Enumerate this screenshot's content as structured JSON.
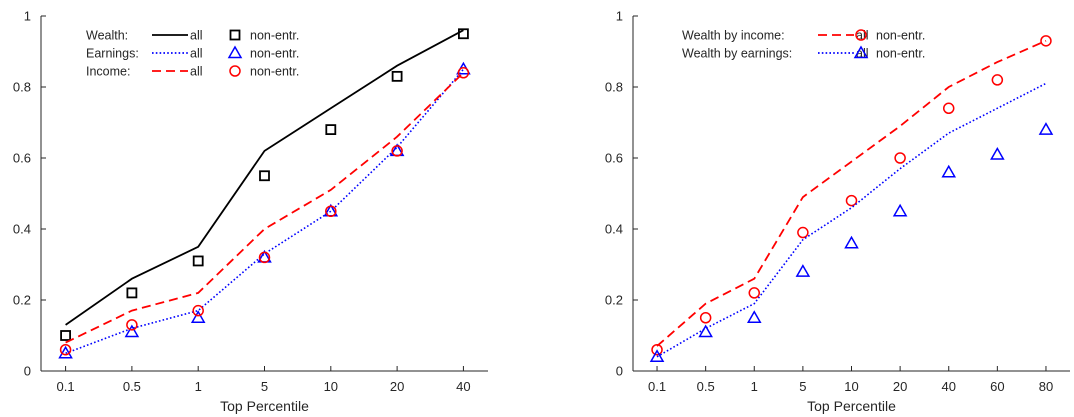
{
  "chart_data": [
    {
      "type": "line",
      "title": "",
      "xlabel": "Top Percentile",
      "ylabel": "",
      "ylim": [
        0,
        1
      ],
      "yticks": [
        "0",
        "0.2",
        "0.4",
        "0.6",
        "0.8",
        "1"
      ],
      "yticks_values": [
        0,
        0.2,
        0.4,
        0.6,
        0.8,
        1
      ],
      "categories": [
        "0.1",
        "0.5",
        "1",
        "5",
        "10",
        "20",
        "40"
      ],
      "grid": false,
      "legend": "top-left",
      "series": [
        {
          "group": "Wealth:",
          "name": "all",
          "kind": "line",
          "style": "solid",
          "color": "#000000",
          "values": [
            0.13,
            0.26,
            0.35,
            0.62,
            0.74,
            0.86,
            0.96
          ]
        },
        {
          "group": "Wealth:",
          "name": "non-entr.",
          "kind": "marker",
          "marker": "square",
          "color": "#000000",
          "values": [
            0.1,
            0.22,
            0.31,
            0.55,
            0.68,
            0.83,
            0.95
          ]
        },
        {
          "group": "Earnings:",
          "name": "all",
          "kind": "line",
          "style": "dotted",
          "color": "#0000ff",
          "values": [
            0.05,
            0.12,
            0.17,
            0.33,
            0.45,
            0.63,
            0.85
          ]
        },
        {
          "group": "Earnings:",
          "name": "non-entr.",
          "kind": "marker",
          "marker": "triangle",
          "color": "#0000ff",
          "values": [
            0.05,
            0.11,
            0.15,
            0.32,
            0.45,
            0.62,
            0.85
          ]
        },
        {
          "group": "Income:",
          "name": "all",
          "kind": "line",
          "style": "dashed",
          "color": "#ff0000",
          "values": [
            0.08,
            0.17,
            0.22,
            0.4,
            0.51,
            0.66,
            0.84
          ]
        },
        {
          "group": "Income:",
          "name": "non-entr.",
          "kind": "marker",
          "marker": "circle",
          "color": "#ff0000",
          "values": [
            0.06,
            0.13,
            0.17,
            0.32,
            0.45,
            0.62,
            0.84
          ]
        }
      ]
    },
    {
      "type": "line",
      "title": "",
      "xlabel": "Top Percentile",
      "ylabel": "",
      "ylim": [
        0,
        1
      ],
      "yticks": [
        "0",
        "0.2",
        "0.4",
        "0.6",
        "0.8",
        "1"
      ],
      "yticks_values": [
        0,
        0.2,
        0.4,
        0.6,
        0.8,
        1
      ],
      "categories": [
        "0.1",
        "0.5",
        "1",
        "5",
        "10",
        "20",
        "40",
        "60",
        "80"
      ],
      "grid": false,
      "legend": "top-left",
      "series": [
        {
          "group": "Wealth by income:",
          "name": "all",
          "kind": "line",
          "style": "dashed",
          "color": "#ff0000",
          "values": [
            0.07,
            0.19,
            0.26,
            0.49,
            0.59,
            0.69,
            0.8,
            0.87,
            0.93
          ]
        },
        {
          "group": "Wealth by income:",
          "name": "non-entr.",
          "kind": "marker",
          "marker": "circle",
          "color": "#ff0000",
          "values": [
            0.06,
            0.15,
            0.22,
            0.39,
            0.48,
            0.6,
            0.74,
            0.82,
            0.93
          ]
        },
        {
          "group": "Wealth by earnings:",
          "name": "all",
          "kind": "line",
          "style": "dotted",
          "color": "#0000ff",
          "values": [
            0.04,
            0.12,
            0.19,
            0.37,
            0.46,
            0.57,
            0.67,
            0.74,
            0.81
          ]
        },
        {
          "group": "Wealth by earnings:",
          "name": "non-entr.",
          "kind": "marker",
          "marker": "triangle",
          "color": "#0000ff",
          "values": [
            0.04,
            0.11,
            0.15,
            0.28,
            0.36,
            0.45,
            0.56,
            0.61,
            0.68
          ]
        }
      ]
    }
  ]
}
